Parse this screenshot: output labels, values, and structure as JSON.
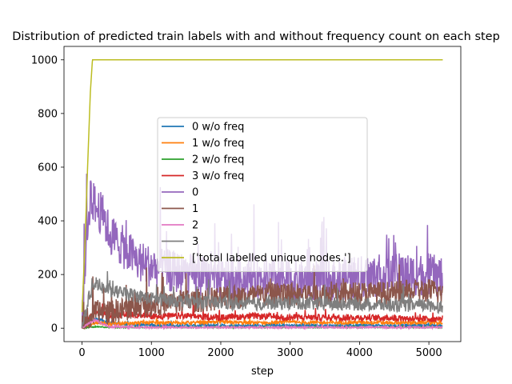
{
  "chart_data": {
    "type": "line",
    "title": "Distribution of predicted train labels with and without frequency count on each step",
    "xlabel": "step",
    "ylabel": "",
    "xlim": [
      -260,
      5460
    ],
    "ylim": [
      -50,
      1050
    ],
    "xticks": [
      0,
      1000,
      2000,
      3000,
      4000,
      5000
    ],
    "yticks": [
      0,
      200,
      400,
      600,
      800,
      1000
    ],
    "legend_position": "center",
    "series": [
      {
        "name": "0 w/o freq",
        "color": "#1f77b4",
        "x": [
          0,
          100,
          200,
          300,
          400,
          600,
          800,
          1000,
          1500,
          2000,
          2500,
          3000,
          3500,
          4000,
          4500,
          5000,
          5200
        ],
        "y": [
          0,
          15,
          35,
          30,
          20,
          15,
          12,
          10,
          10,
          9,
          10,
          10,
          9,
          10,
          9,
          10,
          10
        ],
        "noise": 5
      },
      {
        "name": "1 w/o freq",
        "color": "#ff7f0e",
        "x": [
          0,
          100,
          200,
          300,
          400,
          600,
          800,
          1000,
          1500,
          2000,
          2500,
          3000,
          3500,
          4000,
          4500,
          5000,
          5200
        ],
        "y": [
          0,
          10,
          20,
          20,
          15,
          18,
          20,
          20,
          20,
          22,
          20,
          22,
          20,
          22,
          20,
          20,
          20
        ],
        "noise": 6
      },
      {
        "name": "2 w/o freq",
        "color": "#2ca02c",
        "x": [
          0,
          100,
          200,
          300,
          400,
          600,
          800,
          1000,
          1500,
          2000,
          2500,
          3000,
          3500,
          4000,
          4500,
          5000,
          5200
        ],
        "y": [
          0,
          3,
          5,
          4,
          3,
          3,
          3,
          3,
          3,
          3,
          3,
          3,
          3,
          3,
          3,
          3,
          3
        ],
        "noise": 2
      },
      {
        "name": "3 w/o freq",
        "color": "#d62728",
        "x": [
          0,
          100,
          200,
          300,
          400,
          600,
          800,
          1000,
          1500,
          2000,
          2500,
          3000,
          3500,
          4000,
          4500,
          5000,
          5200
        ],
        "y": [
          0,
          40,
          60,
          55,
          45,
          50,
          50,
          45,
          45,
          40,
          45,
          40,
          40,
          40,
          38,
          35,
          35
        ],
        "noise": 12
      },
      {
        "name": "0",
        "color": "#9467bd",
        "x": [
          0,
          60,
          120,
          200,
          300,
          400,
          600,
          800,
          1000,
          1500,
          2000,
          2500,
          3000,
          3500,
          4000,
          4500,
          5000,
          5200
        ],
        "y": [
          0,
          300,
          500,
          450,
          420,
          350,
          300,
          250,
          230,
          200,
          180,
          190,
          180,
          180,
          190,
          200,
          200,
          190
        ],
        "noise": 80
      },
      {
        "name": "1",
        "color": "#8c564b",
        "x": [
          0,
          100,
          200,
          300,
          400,
          600,
          800,
          1000,
          1500,
          2000,
          2500,
          3000,
          3500,
          4000,
          4500,
          5000,
          5200
        ],
        "y": [
          0,
          30,
          60,
          60,
          60,
          70,
          80,
          90,
          100,
          110,
          120,
          130,
          125,
          130,
          130,
          140,
          130
        ],
        "noise": 45
      },
      {
        "name": "2",
        "color": "#e377c2",
        "x": [
          0,
          100,
          200,
          300,
          400,
          600,
          800,
          1000,
          1500,
          2000,
          2500,
          3000,
          3500,
          4000,
          4500,
          5000,
          5200
        ],
        "y": [
          0,
          20,
          30,
          15,
          5,
          4,
          3,
          3,
          3,
          3,
          3,
          3,
          3,
          3,
          3,
          3,
          3
        ],
        "noise": 3
      },
      {
        "name": "3",
        "color": "#7f7f7f",
        "x": [
          0,
          100,
          200,
          300,
          400,
          600,
          800,
          1000,
          1500,
          2000,
          2500,
          3000,
          3500,
          4000,
          4500,
          5000,
          5200
        ],
        "y": [
          0,
          120,
          170,
          150,
          140,
          130,
          120,
          110,
          100,
          95,
          90,
          95,
          90,
          90,
          85,
          85,
          80
        ],
        "noise": 25
      },
      {
        "name": "['total labelled unique nodes.']",
        "color": "#bcbd22",
        "x": [
          0,
          40,
          80,
          120,
          150,
          5200
        ],
        "y": [
          60,
          300,
          600,
          880,
          1000,
          1000
        ],
        "noise": 0
      }
    ]
  }
}
